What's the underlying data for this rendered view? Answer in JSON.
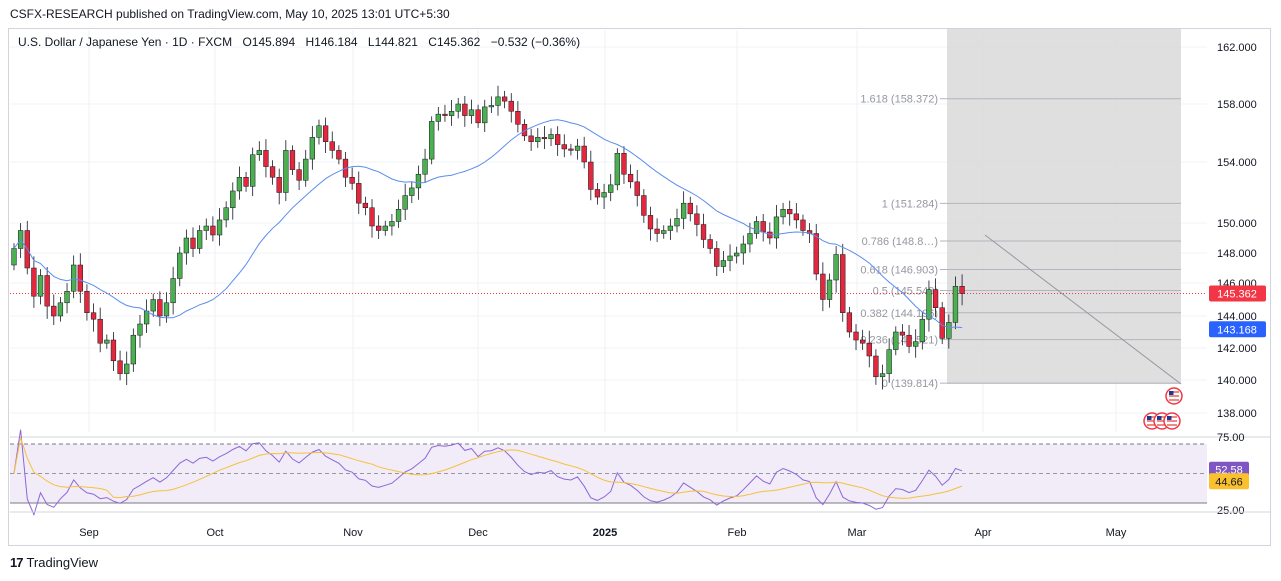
{
  "header": {
    "published": "CSFX-RESEARCH published on TradingView.com, May 10, 2025 13:01 UTC+5:30"
  },
  "legend": {
    "symbol": "U.S. Dollar / Japanese Yen · 1D · FXCM",
    "open": "O145.894",
    "high": "H146.184",
    "low": "L144.821",
    "close": "C145.362",
    "change": "−0.532 (−0.36%)"
  },
  "footer": {
    "brand": "TradingView"
  },
  "colors": {
    "up": "#4caf50",
    "down": "#e3283e",
    "sma": "#5b8def",
    "rsi": "#8e67d8",
    "rsi_ma": "#f5c13c",
    "price_tag": "#f23645",
    "sma_tag": "#2962ff",
    "fib": "#9598a1",
    "zone": "#d9d9d9"
  },
  "chart_data": [
    {
      "type": "candlestick",
      "title": "U.S. Dollar / Japanese Yen · 1D · FXCM",
      "y_ticks": [
        "162.000",
        "158.000",
        "154.000",
        "150.000",
        "148.000",
        "146.000",
        "144.000",
        "142.000",
        "140.000",
        "138.000"
      ],
      "x_ticks": [
        "Sep",
        "Oct",
        "Nov",
        "Dec",
        "2025",
        "Feb",
        "Mar",
        "Apr",
        "May"
      ],
      "last_price": "145.362",
      "ma_value": "143.168",
      "close": [
        148.3,
        149.5,
        147.0,
        145.2,
        146.5,
        144.6,
        144.0,
        144.8,
        145.5,
        147.2,
        145.5,
        144.2,
        143.8,
        142.3,
        142.5,
        141.2,
        140.4,
        141.0,
        142.8,
        143.5,
        144.3,
        145.0,
        144.0,
        144.8,
        146.3,
        148.0,
        149.0,
        148.3,
        149.5,
        149.8,
        149.2,
        150.2,
        151.0,
        152.1,
        153.0,
        152.4,
        154.5,
        154.8,
        153.7,
        153.0,
        152.0,
        154.8,
        153.5,
        152.8,
        154.2,
        155.7,
        156.5,
        155.4,
        154.8,
        154.2,
        153.0,
        152.6,
        151.3,
        151.0,
        149.8,
        149.5,
        149.8,
        150.1,
        150.9,
        151.8,
        152.3,
        153.2,
        154.2,
        156.8,
        157.3,
        157.2,
        157.5,
        158.0,
        157.2,
        157.6,
        156.7,
        157.8,
        157.9,
        158.5,
        158.2,
        157.5,
        156.6,
        155.8,
        155.4,
        155.7,
        155.6,
        155.9,
        155.2,
        154.9,
        154.8,
        155.1,
        154.0,
        152.2,
        151.7,
        152.0,
        152.5,
        154.6,
        153.2,
        152.7,
        151.8,
        150.5,
        149.6,
        149.3,
        149.5,
        149.8,
        150.3,
        151.3,
        150.6,
        149.9,
        148.9,
        148.3,
        147.1,
        147.5,
        147.8,
        148.0,
        148.6,
        149.3,
        150.1,
        149.4,
        149.0,
        150.4,
        150.9,
        150.6,
        150.2,
        149.5,
        149.3,
        146.6,
        145.0,
        146.2,
        147.9,
        144.2,
        143.0,
        142.5,
        142.3,
        141.5,
        140.2,
        140.4,
        141.9,
        143.0,
        142.8,
        142.1,
        142.4,
        143.8,
        145.6,
        144.5,
        142.6,
        143.6,
        145.8,
        145.362
      ],
      "ma_range": [
        131,
        146
      ],
      "fib_levels": [
        {
          "label": "1.618 (158.372)",
          "value": 158.372
        },
        {
          "label": "1 (151.284)",
          "value": 151.284
        },
        {
          "label": "0.786 (148.8…)",
          "value": 148.8
        },
        {
          "label": "0.618 (146.903)",
          "value": 146.903
        },
        {
          "label": "0.5 (145.549)",
          "value": 145.549
        },
        {
          "label": "0.382 (144.196)",
          "value": 144.196
        },
        {
          "label": "0.236 (142.521)",
          "value": 142.521
        },
        {
          "label": "0 (139.814)",
          "value": 139.814
        }
      ]
    },
    {
      "type": "line",
      "title": "RSI",
      "y_ticks": [
        "75.00",
        "25.00"
      ],
      "bands": [
        70,
        50,
        30
      ],
      "rsi_value": "52.58",
      "rsi_ma_value": "44.66"
    }
  ]
}
